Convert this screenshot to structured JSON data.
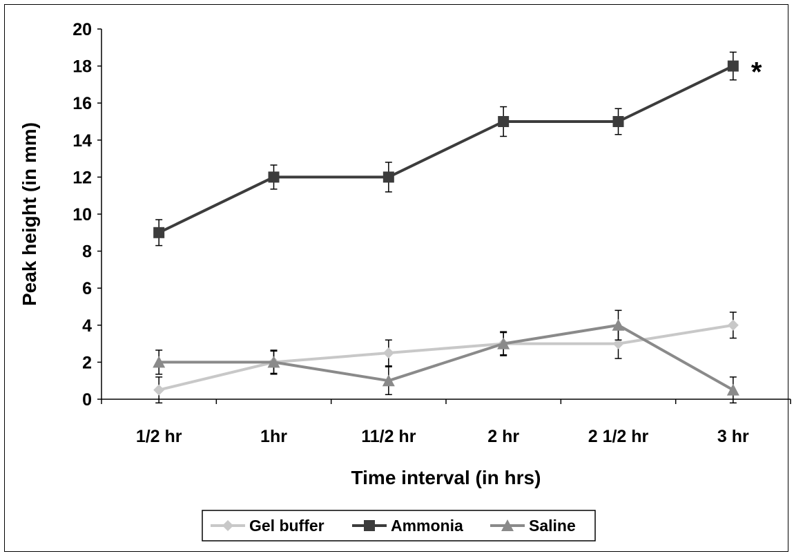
{
  "chart_data": {
    "type": "line",
    "xlabel": "Time interval (in hrs)",
    "ylabel": "Peak height (in mm)",
    "categories": [
      "1/2 hr",
      "1hr",
      "11/2 hr",
      "2 hr",
      "2 1/2 hr",
      "3 hr"
    ],
    "ylim": [
      0,
      20
    ],
    "yticks": [
      0,
      2,
      4,
      6,
      8,
      10,
      12,
      14,
      16,
      18,
      20
    ],
    "grid": false,
    "legend_position": "bottom",
    "series": [
      {
        "name": "Gel buffer",
        "color": "#c8c8c8",
        "marker": "diamond",
        "values": [
          0.5,
          2,
          2.5,
          3,
          3,
          4
        ],
        "errors": [
          0.7,
          0.6,
          0.7,
          0.6,
          0.8,
          0.7
        ]
      },
      {
        "name": "Ammonia",
        "color": "#3c3c3c",
        "marker": "square",
        "values": [
          9,
          12,
          12,
          15,
          15,
          18
        ],
        "errors": [
          0.7,
          0.65,
          0.8,
          0.8,
          0.7,
          0.75
        ]
      },
      {
        "name": "Saline",
        "color": "#8a8a8a",
        "marker": "triangle",
        "values": [
          2,
          2,
          1,
          3,
          4,
          0.5
        ],
        "errors": [
          0.65,
          0.65,
          0.75,
          0.65,
          0.8,
          0.7
        ]
      }
    ],
    "annotations": [
      {
        "text": "*",
        "category_index": 5,
        "y": 18
      }
    ]
  }
}
